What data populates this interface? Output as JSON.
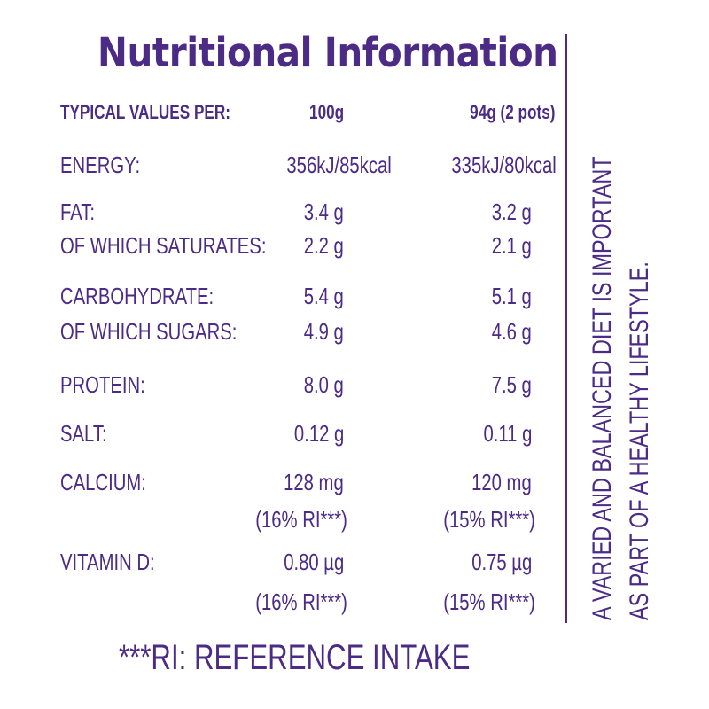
{
  "title": "Nutritional Information",
  "header": {
    "label": "TYPICAL VALUES PER:",
    "col1": "100g",
    "col2": "94g (2 pots)"
  },
  "rows": [
    {
      "label": "ENERGY:",
      "col1": "356kJ/85kcal",
      "col2": "335kJ/80kcal"
    },
    {
      "label": "FAT:",
      "col1": "3.4 g",
      "col2": "3.2 g"
    },
    {
      "label": "OF WHICH SATURATES:",
      "col1": "2.2 g",
      "col2": "2.1 g"
    },
    {
      "label": "CARBOHYDRATE:",
      "col1": "5.4 g",
      "col2": "5.1 g"
    },
    {
      "label": "OF WHICH SUGARS:",
      "col1": "4.9 g",
      "col2": "4.6 g"
    },
    {
      "label": "PROTEIN:",
      "col1": "8.0 g",
      "col2": "7.5 g"
    },
    {
      "label": "SALT:",
      "col1": "0.12 g",
      "col2": "0.11 g"
    },
    {
      "label": "CALCIUM:",
      "col1": "128 mg",
      "col2": "120 mg"
    },
    {
      "label": "",
      "col1": "(16% RI***)",
      "col2": "(15% RI***)"
    },
    {
      "label": "VITAMIN D:",
      "col1": "0.80 µg",
      "col2": "0.75 µg"
    },
    {
      "label": "",
      "col1": "(16% RI***)",
      "col2": "(15% RI***)"
    }
  ],
  "side_note": {
    "line1": "A VARIED AND BALANCED DIET IS IMPORTANT",
    "line2": "AS PART OF A HEALTHY LIFESTYLE."
  },
  "footnote": "***RI: REFERENCE INTAKE",
  "colors": {
    "text": "#4b2b85",
    "background": "#ffffff"
  }
}
